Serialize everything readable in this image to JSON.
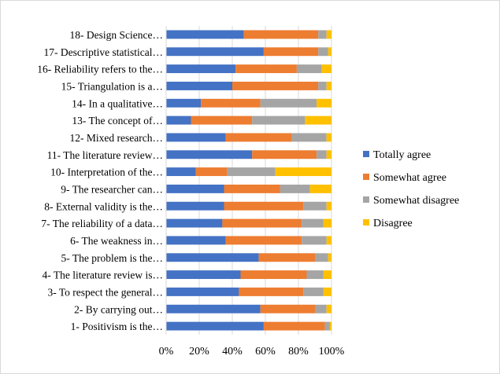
{
  "chart_data": {
    "type": "bar",
    "orientation": "horizontal",
    "stacked": "percent",
    "categories": [
      "1- Positivism is the…",
      "2- By carrying out…",
      "3- To respect the general…",
      "4- The literature review is…",
      "5- The problem is the…",
      "6- The weakness in…",
      "7- The reliability of a data…",
      "8- External validity is the…",
      "9- The researcher can…",
      "10- Interpretation of the…",
      "11- The literature review…",
      "12- Mixed research…",
      "13- The concept of…",
      "14- In a qualitative…",
      "15- Triangulation is a…",
      "16- Reliability refers to the…",
      "17- Descriptive statistical…",
      "18- Design Science…"
    ],
    "series": [
      {
        "name": "Totally agree",
        "color": "#4472C4",
        "values": [
          59,
          57,
          44,
          45,
          56,
          36,
          34,
          35,
          35,
          18,
          52,
          36,
          15,
          21,
          40,
          42,
          59,
          47
        ]
      },
      {
        "name": "Somewhat agree",
        "color": "#ED7D31",
        "values": [
          37,
          33,
          39,
          40,
          34,
          46,
          48,
          48,
          34,
          19,
          39,
          40,
          37,
          36,
          52,
          37,
          33,
          45
        ]
      },
      {
        "name": "Somewhat disagree",
        "color": "#A5A5A5",
        "values": [
          3,
          7,
          12,
          10,
          8,
          15,
          13,
          14,
          18,
          29,
          6,
          21,
          32,
          34,
          5,
          15,
          6,
          5
        ]
      },
      {
        "name": "Disagree",
        "color": "#FFC000",
        "values": [
          1,
          3,
          5,
          5,
          2,
          3,
          5,
          3,
          13,
          34,
          3,
          3,
          16,
          9,
          3,
          6,
          2,
          3
        ]
      }
    ],
    "x_ticks": [
      "0%",
      "20%",
      "40%",
      "80%",
      "100%"
    ],
    "x_ticks_all": [
      "0%",
      "20%",
      "40%",
      "60%",
      "80%",
      "100%"
    ],
    "xlim": [
      0,
      100
    ],
    "grid": true,
    "legend_position": "right"
  }
}
